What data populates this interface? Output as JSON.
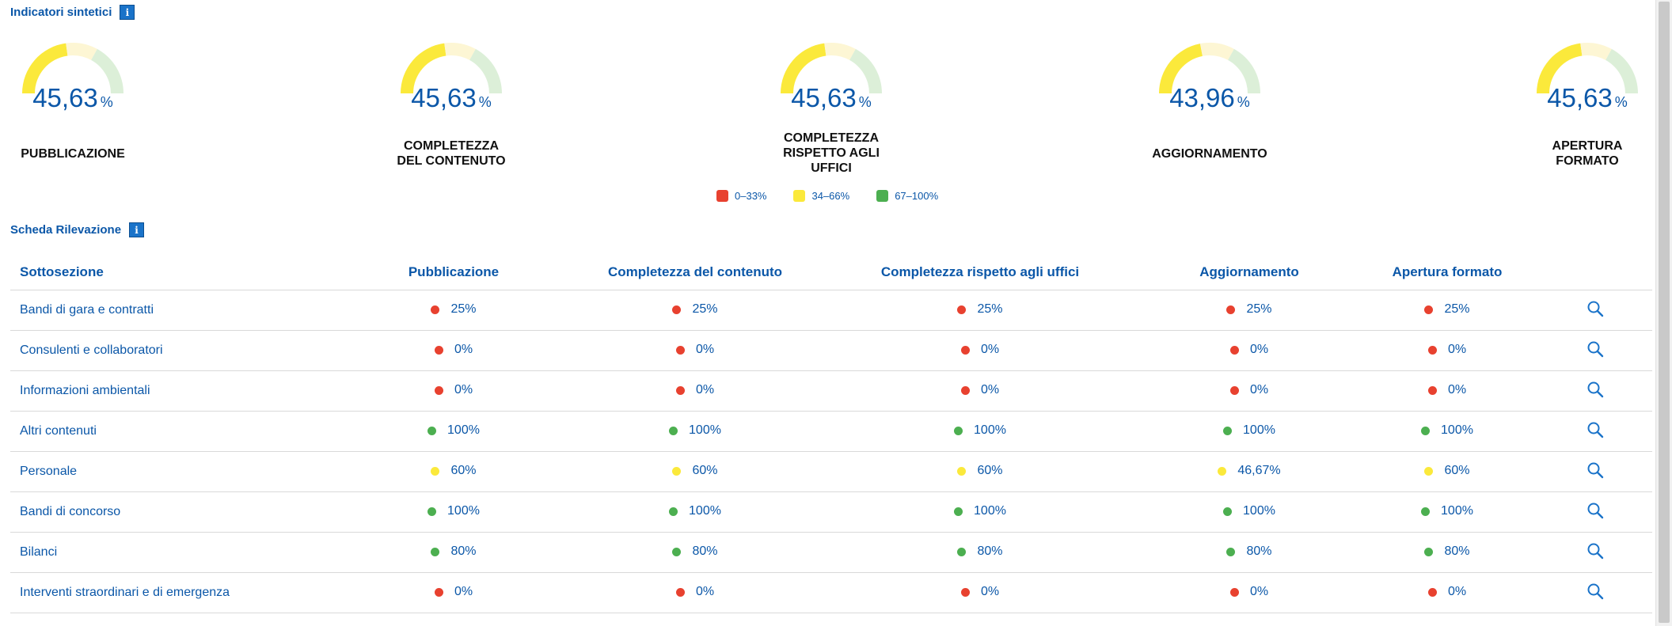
{
  "colors": {
    "red": "#e8412f",
    "yellow": "#fbe93b",
    "green": "#4caf50",
    "gauge_yellow": "#fbe93b",
    "gauge_light_yellow": "#fdf6d4",
    "gauge_light_green": "#dcefd8",
    "brand_blue": "#0b57a8",
    "info_blue": "#1a73c9"
  },
  "indicators": {
    "title": "Indicatori sintetici",
    "info": "i",
    "items": [
      {
        "value": "45,63",
        "unit": "%",
        "label_html_lines": [
          "PUBBLICAZIONE"
        ],
        "fraction": 0.4563
      },
      {
        "value": "45,63",
        "unit": "%",
        "label_html_lines": [
          "COMPLETEZZA",
          "DEL CONTENUTO"
        ],
        "fraction": 0.4563
      },
      {
        "value": "45,63",
        "unit": "%",
        "label_html_lines": [
          "COMPLETEZZA",
          "RISPETTO AGLI",
          "UFFICI"
        ],
        "fraction": 0.4563
      },
      {
        "value": "43,96",
        "unit": "%",
        "label_html_lines": [
          "AGGIORNAMENTO"
        ],
        "fraction": 0.4396
      },
      {
        "value": "45,63",
        "unit": "%",
        "label_html_lines": [
          "APERTURA",
          "FORMATO"
        ],
        "fraction": 0.4563
      }
    ],
    "labels_joined": [
      "PUBBLICAZIONE",
      "COMPLETEZZA DEL CONTENUTO",
      "COMPLETEZZA RISPETTO AGLI UFFICI",
      "AGGIORNAMENTO",
      "APERTURA FORMATO"
    ]
  },
  "legend": [
    {
      "label": "0–33%",
      "color": "red"
    },
    {
      "label": "34–66%",
      "color": "yellow"
    },
    {
      "label": "67–100%",
      "color": "green"
    }
  ],
  "scheda": {
    "title": "Scheda Rilevazione",
    "info": "i"
  },
  "table": {
    "headers": [
      "Sottosezione",
      "Pubblicazione",
      "Completezza del contenuto",
      "Completezza rispetto agli uffici",
      "Aggiornamento",
      "Apertura formato"
    ],
    "search_icon": "search-icon",
    "rows": [
      {
        "name": "Bandi di gara e contratti",
        "values": [
          "25%",
          "25%",
          "25%",
          "25%",
          "25%"
        ],
        "colors": [
          "red",
          "red",
          "red",
          "red",
          "red"
        ]
      },
      {
        "name": "Consulenti e collaboratori",
        "values": [
          "0%",
          "0%",
          "0%",
          "0%",
          "0%"
        ],
        "colors": [
          "red",
          "red",
          "red",
          "red",
          "red"
        ]
      },
      {
        "name": "Informazioni ambientali",
        "values": [
          "0%",
          "0%",
          "0%",
          "0%",
          "0%"
        ],
        "colors": [
          "red",
          "red",
          "red",
          "red",
          "red"
        ]
      },
      {
        "name": "Altri contenuti",
        "values": [
          "100%",
          "100%",
          "100%",
          "100%",
          "100%"
        ],
        "colors": [
          "green",
          "green",
          "green",
          "green",
          "green"
        ]
      },
      {
        "name": "Personale",
        "values": [
          "60%",
          "60%",
          "60%",
          "46,67%",
          "60%"
        ],
        "colors": [
          "yellow",
          "yellow",
          "yellow",
          "yellow",
          "yellow"
        ]
      },
      {
        "name": "Bandi di concorso",
        "values": [
          "100%",
          "100%",
          "100%",
          "100%",
          "100%"
        ],
        "colors": [
          "green",
          "green",
          "green",
          "green",
          "green"
        ]
      },
      {
        "name": "Bilanci",
        "values": [
          "80%",
          "80%",
          "80%",
          "80%",
          "80%"
        ],
        "colors": [
          "green",
          "green",
          "green",
          "green",
          "green"
        ]
      },
      {
        "name": "Interventi straordinari e di emergenza",
        "values": [
          "0%",
          "0%",
          "0%",
          "0%",
          "0%"
        ],
        "colors": [
          "red",
          "red",
          "red",
          "red",
          "red"
        ]
      }
    ]
  }
}
